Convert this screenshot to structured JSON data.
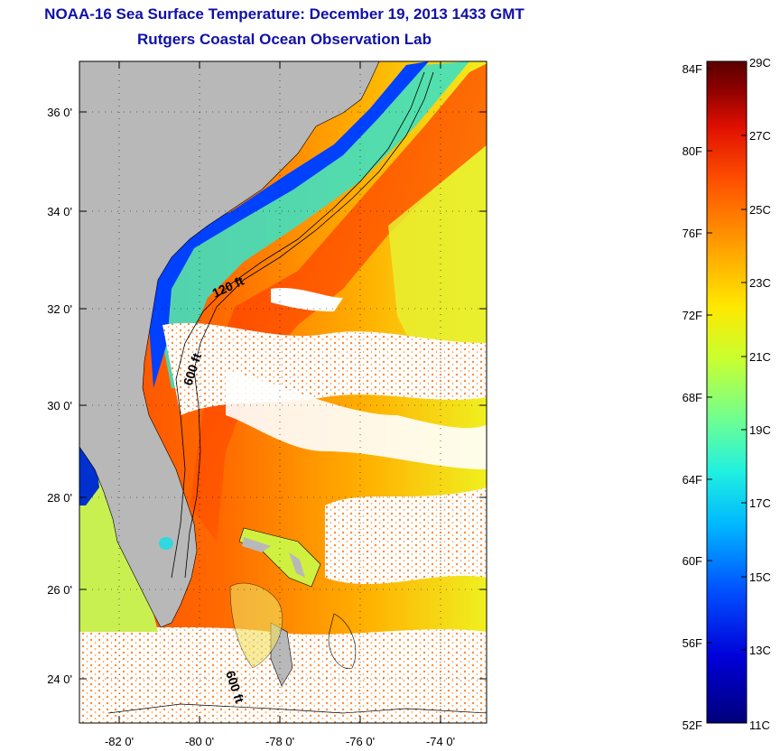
{
  "title": {
    "line1": "NOAA-16 Sea Surface Temperature:  December 19, 2013 1433 GMT",
    "line2": "Rutgers Coastal Ocean Observation Lab"
  },
  "colors": {
    "title_text": "#1010a8",
    "land": "#b8b8b8",
    "cloud": "#ffffff"
  },
  "map": {
    "lat_ticks": [
      "36 0'",
      "34 0'",
      "32 0'",
      "30 0'",
      "28 0'",
      "26 0'",
      "24 0'"
    ],
    "lon_ticks": [
      "-82 0'",
      "-80 0'",
      "-78 0'",
      "-76 0'",
      "-74 0'"
    ],
    "contour_labels": [
      "120 ft",
      "600 ft",
      "600 ft"
    ]
  },
  "colorbar": {
    "fahrenheit": [
      "84F",
      "80F",
      "76F",
      "72F",
      "68F",
      "64F",
      "60F",
      "56F",
      "52F"
    ],
    "celsius": [
      "29C",
      "27C",
      "25C",
      "23C",
      "21C",
      "19C",
      "17C",
      "15C",
      "13C",
      "11C"
    ],
    "range_c": [
      11,
      29
    ],
    "gradient_colors": [
      "#00007a",
      "#0000d8",
      "#0050ff",
      "#00b8ff",
      "#20f0e0",
      "#70ff90",
      "#c8ff30",
      "#ffe800",
      "#ffa000",
      "#ff5000",
      "#e01000",
      "#8a0000",
      "#5a0000"
    ]
  }
}
